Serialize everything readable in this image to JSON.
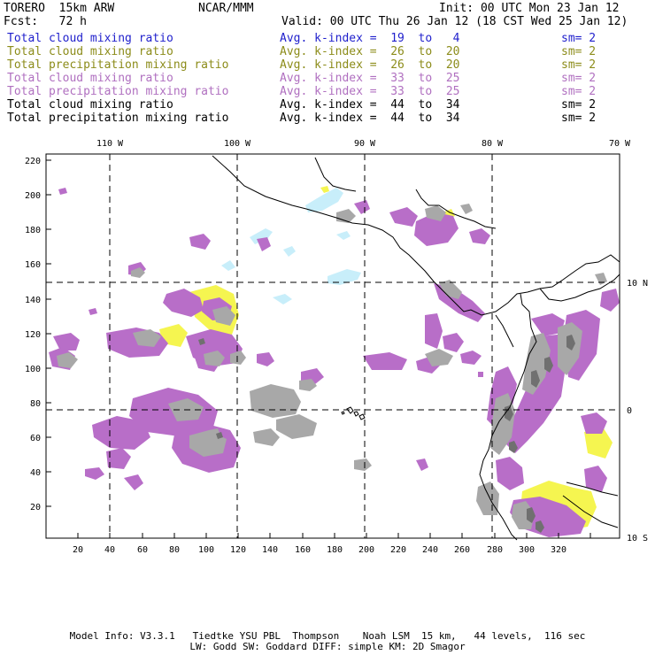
{
  "header": {
    "model": "TORERO  15km ARW",
    "org": "NCAR/MMM",
    "init": "Init: 00 UTC Mon 23 Jan 12",
    "fcst": "Fcst:   72 h",
    "valid": "Valid: 00 UTC Thu 26 Jan 12 (18 CST Wed 25 Jan 12)"
  },
  "legend": [
    {
      "field": "Total cloud mixing ratio",
      "kindex": "Avg. k-index =  19  to   4",
      "sm": "sm= 2",
      "color": "#1f1fcc"
    },
    {
      "field": "Total cloud mixing ratio",
      "kindex": "Avg. k-index =  26  to  20",
      "sm": "sm= 2",
      "color": "#8c8c1a"
    },
    {
      "field": "Total precipitation mixing ratio",
      "kindex": "Avg. k-index =  26  to  20",
      "sm": "sm= 2",
      "color": "#8c8c1a"
    },
    {
      "field": "Total cloud mixing ratio",
      "kindex": "Avg. k-index =  33  to  25",
      "sm": "sm= 2",
      "color": "#b070c0"
    },
    {
      "field": "Total precipitation mixing ratio",
      "kindex": "Avg. k-index =  33  to  25",
      "sm": "sm= 2",
      "color": "#b070c0"
    },
    {
      "field": "Total cloud mixing ratio",
      "kindex": "Avg. k-index =  44  to  34",
      "sm": "sm= 2",
      "color": "#000000"
    },
    {
      "field": "Total precipitation mixing ratio",
      "kindex": "Avg. k-index =  44  to  34",
      "sm": "sm= 2",
      "color": "#000000"
    }
  ],
  "map": {
    "lon_labels": [
      "110 W",
      "100 W",
      "90 W",
      "80 W",
      "70 W"
    ],
    "lat_labels": [
      "10 N",
      "0",
      "10 S"
    ],
    "y_ticks": [
      "220",
      "200",
      "180",
      "160",
      "140",
      "120",
      "100",
      "80",
      "60",
      "40",
      "20"
    ],
    "x_ticks": [
      "20",
      "40",
      "60",
      "80",
      "100",
      "120",
      "140",
      "160",
      "180",
      "200",
      "220",
      "240",
      "260",
      "280",
      "300",
      "320"
    ],
    "colors": {
      "light_blue": "#c8eefa",
      "yellow": "#f5f550",
      "purple": "#b86ec8",
      "gray": "#a8a8a8",
      "dark_gray": "#707070"
    }
  },
  "footer": {
    "line1": "Model Info: V3.3.1   Tiedtke YSU PBL  Thompson    Noah LSM  15 km,   44 levels,  116 sec",
    "line2": "LW: Godd SW: Goddard DIFF: simple KM: 2D Smagor"
  }
}
